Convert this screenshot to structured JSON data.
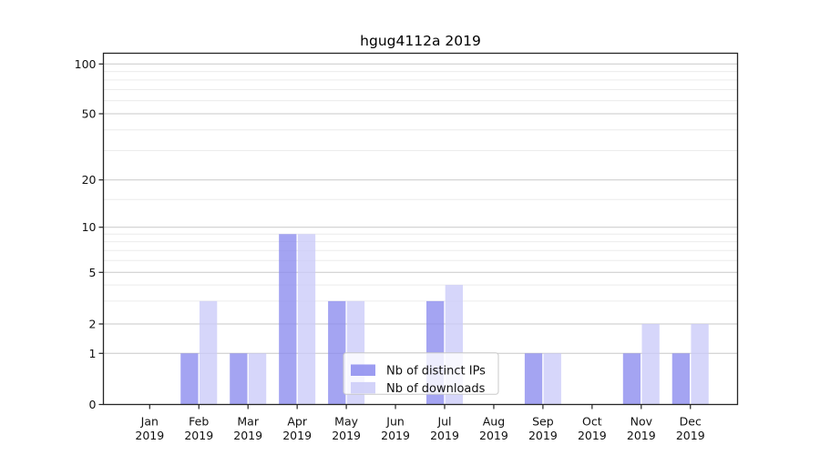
{
  "title": "hgug4112a 2019",
  "chart_data": {
    "type": "bar",
    "title": "hgug4112a 2019",
    "categories": [
      "Jan 2019",
      "Feb 2019",
      "Mar 2019",
      "Apr 2019",
      "May 2019",
      "Jun 2019",
      "Jul 2019",
      "Aug 2019",
      "Sep 2019",
      "Oct 2019",
      "Nov 2019",
      "Dec 2019"
    ],
    "months": [
      "Jan",
      "Feb",
      "Mar",
      "Apr",
      "May",
      "Jun",
      "Jul",
      "Aug",
      "Sep",
      "Oct",
      "Nov",
      "Dec"
    ],
    "year_label": "2019",
    "series": [
      {
        "name": "Nb of distinct IPs",
        "color": "#8b8bee",
        "values": [
          0,
          1,
          1,
          9,
          3,
          0,
          3,
          0,
          1,
          0,
          1,
          1
        ]
      },
      {
        "name": "Nb of downloads",
        "color": "#cbcbf8",
        "values": [
          0,
          3,
          1,
          9,
          3,
          0,
          4,
          0,
          1,
          0,
          2,
          2
        ]
      }
    ],
    "xlabel": "",
    "ylabel": "",
    "yscale": "symlog (linear 0-1, logarithmic above 1)",
    "yticks": [
      0,
      1,
      2,
      5,
      10,
      20,
      50,
      100
    ],
    "yticks_minor": [
      3,
      4,
      6,
      7,
      8,
      9,
      15,
      30,
      40,
      60,
      70,
      80,
      90
    ],
    "ylim": [
      0,
      110
    ],
    "grid": true,
    "legend": {
      "position": "lower-center-inside",
      "labels": [
        "Nb of distinct IPs",
        "Nb of downloads"
      ]
    }
  },
  "colors": {
    "bar_distinct_ips": "#8b8bee",
    "bar_downloads": "#cbcbf8",
    "grid_major": "#c9c9c9",
    "grid_minor": "#ececec",
    "axis": "#262626",
    "text": "#111111",
    "legend_border": "#c9c9c9",
    "background": "#ffffff"
  }
}
